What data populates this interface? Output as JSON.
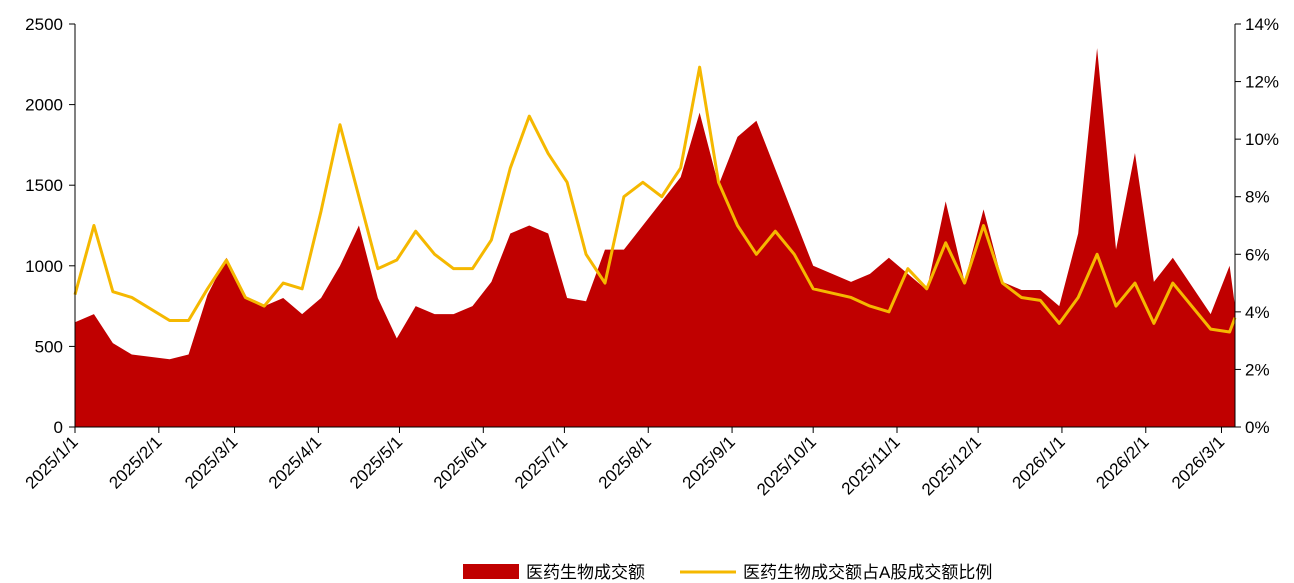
{
  "chart_data": {
    "type": "area-line",
    "x": [
      "2025/1/1",
      "2025/1/8",
      "2025/1/15",
      "2025/1/22",
      "2025/2/5",
      "2025/2/12",
      "2025/2/19",
      "2025/2/26",
      "2025/3/5",
      "2025/3/12",
      "2025/3/19",
      "2025/3/26",
      "2025/4/2",
      "2025/4/9",
      "2025/4/16",
      "2025/4/23",
      "2025/4/30",
      "2025/5/7",
      "2025/5/14",
      "2025/5/21",
      "2025/5/28",
      "2025/6/4",
      "2025/6/11",
      "2025/6/18",
      "2025/6/25",
      "2025/7/2",
      "2025/7/9",
      "2025/7/16",
      "2025/7/23",
      "2025/7/30",
      "2025/8/6",
      "2025/8/13",
      "2025/8/20",
      "2025/8/27",
      "2025/9/3",
      "2025/9/10",
      "2025/9/17",
      "2025/9/24",
      "2025/10/1",
      "2025/10/15",
      "2025/10/22",
      "2025/10/29",
      "2025/11/5",
      "2025/11/12",
      "2025/11/19",
      "2025/11/26",
      "2025/12/3",
      "2025/12/10",
      "2025/12/17",
      "2025/12/24",
      "2025/12/31",
      "2026/1/7",
      "2026/1/14",
      "2026/1/21",
      "2026/1/28",
      "2026/2/4",
      "2026/2/11",
      "2026/2/25",
      "2026/3/4",
      "2026/3/6"
    ],
    "series": [
      {
        "name": "医药生物成交额",
        "color": "#c00000",
        "axis": "y",
        "values": [
          650,
          700,
          520,
          450,
          420,
          450,
          820,
          1050,
          800,
          750,
          800,
          700,
          800,
          1000,
          1250,
          800,
          550,
          750,
          700,
          700,
          750,
          900,
          1200,
          1250,
          1200,
          800,
          780,
          1100,
          1100,
          1250,
          1400,
          1550,
          1950,
          1500,
          1800,
          1900,
          1600,
          1300,
          1000,
          900,
          950,
          1050,
          950,
          850,
          1400,
          900,
          1350,
          900,
          850,
          850,
          750,
          1200,
          2350,
          1100,
          1700,
          900,
          1050,
          700,
          1000,
          750
        ]
      },
      {
        "name": "医药生物成交额占A股成交额比例",
        "color": "#f5b800",
        "axis": "y2",
        "values": [
          4.6,
          7.0,
          4.7,
          4.5,
          3.7,
          3.7,
          4.8,
          5.8,
          4.5,
          4.2,
          5.0,
          4.8,
          7.5,
          10.5,
          8.0,
          5.5,
          5.8,
          6.8,
          6.0,
          5.5,
          5.5,
          6.5,
          9.0,
          10.8,
          9.5,
          8.5,
          6.0,
          5.0,
          8.0,
          8.5,
          8.0,
          9.0,
          12.5,
          8.5,
          7.0,
          6.0,
          6.8,
          6.0,
          4.8,
          4.5,
          4.2,
          4.0,
          5.5,
          4.8,
          6.4,
          5.0,
          7.0,
          5.0,
          4.5,
          4.4,
          3.6,
          4.5,
          6.0,
          4.2,
          5.0,
          3.6,
          5.0,
          3.4,
          3.3,
          3.8
        ]
      }
    ],
    "xlim": [
      "2025/1/1",
      "2026/3/6"
    ],
    "xticks": [
      "2025/1/1",
      "2025/2/1",
      "2025/3/1",
      "2025/4/1",
      "2025/5/1",
      "2025/6/1",
      "2025/7/1",
      "2025/8/1",
      "2025/9/1",
      "2025/10/1",
      "2025/11/1",
      "2025/12/1",
      "2026/1/1",
      "2026/2/1",
      "2026/3/1"
    ],
    "ylim": [
      0,
      2500
    ],
    "yticks": [
      0,
      500,
      1000,
      1500,
      2000,
      2500
    ],
    "y2lim": [
      0,
      14
    ],
    "y2ticks": [
      {
        "value": 0,
        "label": "0%"
      },
      {
        "value": 2,
        "label": "2%"
      },
      {
        "value": 4,
        "label": "4%"
      },
      {
        "value": 6,
        "label": "6%"
      },
      {
        "value": 8,
        "label": "8%"
      },
      {
        "value": 10,
        "label": "10%"
      },
      {
        "value": 12,
        "label": "12%"
      },
      {
        "value": 14,
        "label": "14%"
      }
    ],
    "legend": "bottom",
    "grid": false
  }
}
